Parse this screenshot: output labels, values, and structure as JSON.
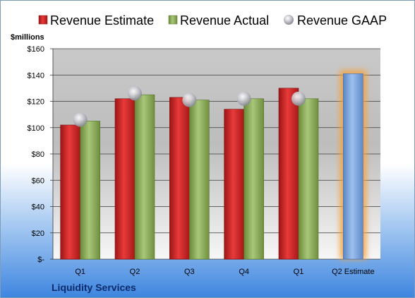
{
  "footer": {
    "company": "Liquidity Services"
  },
  "colors": {
    "estimate": "#d42a2a",
    "actual": "#8fb05a",
    "gaap": "#b8b8c0",
    "future": "#7fa9e0",
    "future_glow": "#f5a23c"
  },
  "chart_data": {
    "type": "bar",
    "ylabel": "$millions",
    "ylim": [
      0,
      160
    ],
    "yticks": [
      0,
      20,
      40,
      60,
      80,
      100,
      120,
      140,
      160
    ],
    "ytick_labels": [
      "$-",
      "$20",
      "$40",
      "$60",
      "$80",
      "$100",
      "$120",
      "$140",
      "$160"
    ],
    "grid": true,
    "legend_position": "top",
    "categories": [
      "Q1",
      "Q2",
      "Q3",
      "Q4",
      "Q1",
      "Q2 Estimate"
    ],
    "series": [
      {
        "name": "Revenue Estimate",
        "kind": "bar",
        "values": [
          102,
          122,
          123,
          114,
          130,
          141
        ]
      },
      {
        "name": "Revenue Actual",
        "kind": "bar",
        "values": [
          105,
          125,
          121,
          122,
          122,
          null
        ]
      },
      {
        "name": "Revenue GAAP",
        "kind": "marker",
        "values": [
          106,
          126,
          121,
          122,
          122,
          null
        ]
      }
    ]
  }
}
